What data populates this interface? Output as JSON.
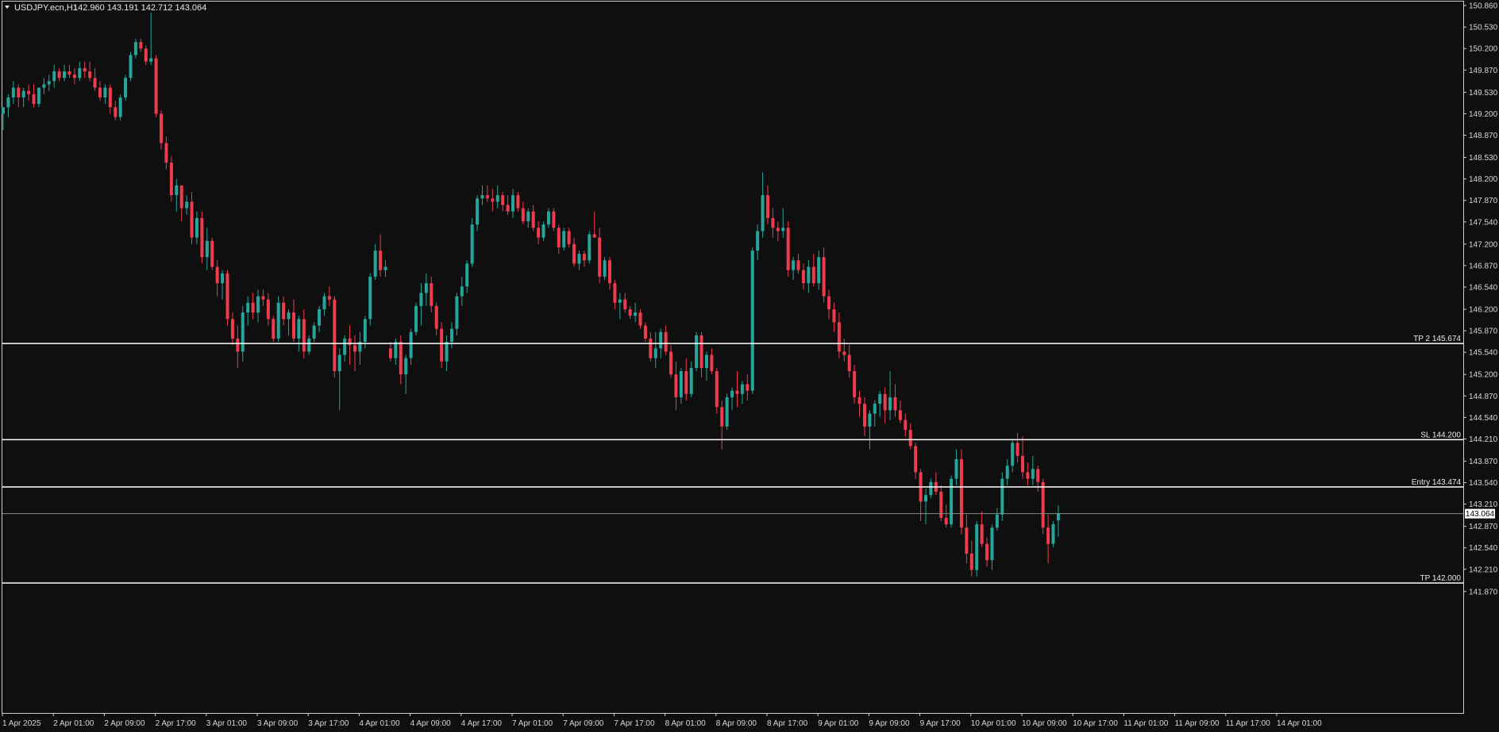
{
  "header": {
    "symbol": "USDJPY.ecn,H1",
    "ohlc": "142.960 143.191 142.712 143.064"
  },
  "colors": {
    "background": "#0f0f0f",
    "bull": "#26a69a",
    "bear": "#ef3b4e",
    "level_line": "#ffffff",
    "current_price_line": "#7f8c8d",
    "axis_text": "#d8d8d8"
  },
  "levels": [
    {
      "label": "TP 2 145.674",
      "price": 145.674
    },
    {
      "label": "SL 144.200",
      "price": 144.2
    },
    {
      "label": "Entry 143.474",
      "price": 143.474
    },
    {
      "label": "TP 142.000",
      "price": 142.0
    }
  ],
  "current_price": {
    "label": "143.064",
    "price": 143.064
  },
  "chart_data": {
    "type": "candlestick",
    "title": "USDJPY.ecn,H1",
    "ylim": [
      141.75,
      150.9
    ],
    "y_ticks": [
      "150.860",
      "150.530",
      "150.200",
      "149.870",
      "149.530",
      "149.200",
      "148.870",
      "148.530",
      "148.200",
      "147.870",
      "147.540",
      "147.200",
      "146.870",
      "146.540",
      "146.200",
      "145.870",
      "145.540",
      "145.200",
      "144.870",
      "144.540",
      "144.210",
      "143.870",
      "143.540",
      "143.210",
      "142.870",
      "142.540",
      "142.210",
      "141.870"
    ],
    "x_ticks": [
      "1 Apr 2025",
      "2 Apr 01:00",
      "2 Apr 09:00",
      "2 Apr 17:00",
      "3 Apr 01:00",
      "3 Apr 09:00",
      "3 Apr 17:00",
      "4 Apr 01:00",
      "4 Apr 09:00",
      "4 Apr 17:00",
      "7 Apr 01:00",
      "7 Apr 09:00",
      "7 Apr 17:00",
      "8 Apr 01:00",
      "8 Apr 09:00",
      "8 Apr 17:00",
      "9 Apr 01:00",
      "9 Apr 09:00",
      "9 Apr 17:00",
      "10 Apr 01:00",
      "10 Apr 09:00",
      "10 Apr 17:00",
      "11 Apr 01:00",
      "11 Apr 09:00",
      "11 Apr 17:00",
      "14 Apr 01:00"
    ],
    "candles_ohlc": [
      [
        149.2,
        149.3,
        148.95,
        149.3
      ],
      [
        149.3,
        149.5,
        149.15,
        149.45
      ],
      [
        149.45,
        149.7,
        149.35,
        149.6
      ],
      [
        149.6,
        149.65,
        149.3,
        149.45
      ],
      [
        149.45,
        149.6,
        149.3,
        149.55
      ],
      [
        149.55,
        149.65,
        149.4,
        149.5
      ],
      [
        149.5,
        149.65,
        149.3,
        149.35
      ],
      [
        149.35,
        149.6,
        149.3,
        149.6
      ],
      [
        149.6,
        149.75,
        149.5,
        149.65
      ],
      [
        149.65,
        149.8,
        149.55,
        149.7
      ],
      [
        149.7,
        149.95,
        149.6,
        149.85
      ],
      [
        149.85,
        149.9,
        149.7,
        149.75
      ],
      [
        149.75,
        149.95,
        149.7,
        149.85
      ],
      [
        149.85,
        149.95,
        149.75,
        149.8
      ],
      [
        149.8,
        149.9,
        149.65,
        149.75
      ],
      [
        149.75,
        150.0,
        149.7,
        149.9
      ],
      [
        149.9,
        150.0,
        149.75,
        149.85
      ],
      [
        149.85,
        150.0,
        149.7,
        149.75
      ],
      [
        149.75,
        149.9,
        149.55,
        149.6
      ],
      [
        149.6,
        149.7,
        149.4,
        149.45
      ],
      [
        149.45,
        149.65,
        149.35,
        149.6
      ],
      [
        149.6,
        149.65,
        149.2,
        149.3
      ],
      [
        149.3,
        149.4,
        149.1,
        149.15
      ],
      [
        149.15,
        149.5,
        149.1,
        149.45
      ],
      [
        149.45,
        149.8,
        149.4,
        149.75
      ],
      [
        149.75,
        150.15,
        149.7,
        150.1
      ],
      [
        150.1,
        150.35,
        150.05,
        150.3
      ],
      [
        150.3,
        150.35,
        150.15,
        150.2
      ],
      [
        150.2,
        150.25,
        149.95,
        150.0
      ],
      [
        150.0,
        150.75,
        149.95,
        150.05
      ],
      [
        150.05,
        150.1,
        149.15,
        149.2
      ],
      [
        149.2,
        149.25,
        148.65,
        148.75
      ],
      [
        148.75,
        148.85,
        148.35,
        148.45
      ],
      [
        148.45,
        148.55,
        147.85,
        147.95
      ],
      [
        147.95,
        148.2,
        147.7,
        148.1
      ],
      [
        148.1,
        148.1,
        147.55,
        147.75
      ],
      [
        147.75,
        147.95,
        147.65,
        147.85
      ],
      [
        147.85,
        148.0,
        147.2,
        147.3
      ],
      [
        147.3,
        147.7,
        147.2,
        147.6
      ],
      [
        147.6,
        147.7,
        146.9,
        147.0
      ],
      [
        147.0,
        147.45,
        146.8,
        147.25
      ],
      [
        147.25,
        147.3,
        146.8,
        146.85
      ],
      [
        146.85,
        146.95,
        146.4,
        146.6
      ],
      [
        146.6,
        146.8,
        146.35,
        146.75
      ],
      [
        146.75,
        146.8,
        145.95,
        146.05
      ],
      [
        146.05,
        146.15,
        145.65,
        145.75
      ],
      [
        145.75,
        145.95,
        145.3,
        145.55
      ],
      [
        145.55,
        146.25,
        145.4,
        146.15
      ],
      [
        146.15,
        146.4,
        145.95,
        146.3
      ],
      [
        146.3,
        146.45,
        146.05,
        146.15
      ],
      [
        146.15,
        146.5,
        146.0,
        146.4
      ],
      [
        146.4,
        146.5,
        146.25,
        146.35
      ],
      [
        146.35,
        146.45,
        145.95,
        146.05
      ],
      [
        146.05,
        146.1,
        145.7,
        145.75
      ],
      [
        145.75,
        146.4,
        145.7,
        146.3
      ],
      [
        146.3,
        146.4,
        145.95,
        146.05
      ],
      [
        146.05,
        146.2,
        145.8,
        146.15
      ],
      [
        146.15,
        146.35,
        145.7,
        145.75
      ],
      [
        145.75,
        146.1,
        145.55,
        146.05
      ],
      [
        146.05,
        146.2,
        145.45,
        145.55
      ],
      [
        145.55,
        145.8,
        145.5,
        145.75
      ],
      [
        145.75,
        146.0,
        145.7,
        145.95
      ],
      [
        145.95,
        146.25,
        145.85,
        146.2
      ],
      [
        146.2,
        146.45,
        146.1,
        146.4
      ],
      [
        146.4,
        146.55,
        146.25,
        146.35
      ],
      [
        146.35,
        146.4,
        145.15,
        145.25
      ],
      [
        145.25,
        145.6,
        144.65,
        145.5
      ],
      [
        145.5,
        145.8,
        145.4,
        145.75
      ],
      [
        145.75,
        145.95,
        145.35,
        145.65
      ],
      [
        145.65,
        145.8,
        145.25,
        145.55
      ],
      [
        145.55,
        145.85,
        145.35,
        145.7
      ],
      [
        145.7,
        146.1,
        145.6,
        146.05
      ],
      [
        146.05,
        146.75,
        145.95,
        146.7
      ],
      [
        146.7,
        147.2,
        146.65,
        147.1
      ],
      [
        147.1,
        147.35,
        146.7,
        146.8
      ],
      [
        146.8,
        146.95,
        146.7,
        146.85
      ],
      [
        145.6,
        145.7,
        145.4,
        145.45
      ],
      [
        145.45,
        145.75,
        145.35,
        145.7
      ],
      [
        145.7,
        145.8,
        145.05,
        145.2
      ],
      [
        145.2,
        145.5,
        144.9,
        145.45
      ],
      [
        145.45,
        145.9,
        145.35,
        145.85
      ],
      [
        145.85,
        146.3,
        145.8,
        146.25
      ],
      [
        146.25,
        146.6,
        145.95,
        146.45
      ],
      [
        146.45,
        146.75,
        146.25,
        146.6
      ],
      [
        146.6,
        146.7,
        146.15,
        146.25
      ],
      [
        146.25,
        146.3,
        145.8,
        145.9
      ],
      [
        145.9,
        146.0,
        145.3,
        145.4
      ],
      [
        145.4,
        145.8,
        145.25,
        145.7
      ],
      [
        145.7,
        146.0,
        145.6,
        145.9
      ],
      [
        145.9,
        146.45,
        145.8,
        146.4
      ],
      [
        146.4,
        146.7,
        146.25,
        146.55
      ],
      [
        146.55,
        146.95,
        146.45,
        146.9
      ],
      [
        146.9,
        147.6,
        146.85,
        147.5
      ],
      [
        147.5,
        147.95,
        147.4,
        147.9
      ],
      [
        147.9,
        148.1,
        147.8,
        147.95
      ],
      [
        147.95,
        148.1,
        147.85,
        147.9
      ],
      [
        147.9,
        148.05,
        147.7,
        147.85
      ],
      [
        147.85,
        148.1,
        147.75,
        147.95
      ],
      [
        147.95,
        148.0,
        147.7,
        147.8
      ],
      [
        147.8,
        147.95,
        147.65,
        147.7
      ],
      [
        147.7,
        148.05,
        147.6,
        147.95
      ],
      [
        147.95,
        148.0,
        147.7,
        147.75
      ],
      [
        147.75,
        147.85,
        147.5,
        147.55
      ],
      [
        147.55,
        147.75,
        147.45,
        147.7
      ],
      [
        147.7,
        147.8,
        147.4,
        147.45
      ],
      [
        147.45,
        147.55,
        147.2,
        147.3
      ],
      [
        147.3,
        147.55,
        147.25,
        147.5
      ],
      [
        147.5,
        147.75,
        147.45,
        147.7
      ],
      [
        147.7,
        147.75,
        147.4,
        147.45
      ],
      [
        147.45,
        147.5,
        147.05,
        147.15
      ],
      [
        147.15,
        147.45,
        147.1,
        147.4
      ],
      [
        147.4,
        147.45,
        147.15,
        147.2
      ],
      [
        147.2,
        147.3,
        146.85,
        146.9
      ],
      [
        146.9,
        147.1,
        146.8,
        147.05
      ],
      [
        147.05,
        147.1,
        146.85,
        146.95
      ],
      [
        146.95,
        147.4,
        146.9,
        147.35
      ],
      [
        147.35,
        147.7,
        147.3,
        147.3
      ],
      [
        147.3,
        147.45,
        146.6,
        146.7
      ],
      [
        146.7,
        147.0,
        146.65,
        146.95
      ],
      [
        146.95,
        147.0,
        146.5,
        146.6
      ],
      [
        146.6,
        146.65,
        146.2,
        146.3
      ],
      [
        146.3,
        146.45,
        146.05,
        146.35
      ],
      [
        146.35,
        146.45,
        146.15,
        146.2
      ],
      [
        146.2,
        146.25,
        146.05,
        146.1
      ],
      [
        146.1,
        146.3,
        146.0,
        146.15
      ],
      [
        146.15,
        146.2,
        145.9,
        145.95
      ],
      [
        145.95,
        146.0,
        145.7,
        145.75
      ],
      [
        145.75,
        145.85,
        145.4,
        145.45
      ],
      [
        145.45,
        145.85,
        145.3,
        145.6
      ],
      [
        145.6,
        145.9,
        145.45,
        145.85
      ],
      [
        145.85,
        145.95,
        145.5,
        145.55
      ],
      [
        145.55,
        145.65,
        145.15,
        145.2
      ],
      [
        145.2,
        145.4,
        144.65,
        144.85
      ],
      [
        144.85,
        145.3,
        144.75,
        145.25
      ],
      [
        145.25,
        145.45,
        144.8,
        144.9
      ],
      [
        144.9,
        145.4,
        144.85,
        145.3
      ],
      [
        145.3,
        145.85,
        145.25,
        145.8
      ],
      [
        145.8,
        145.85,
        145.15,
        145.3
      ],
      [
        145.3,
        145.55,
        145.1,
        145.5
      ],
      [
        145.5,
        145.6,
        145.2,
        145.25
      ],
      [
        145.25,
        145.3,
        144.6,
        144.7
      ],
      [
        144.7,
        144.8,
        144.05,
        144.4
      ],
      [
        144.4,
        144.9,
        144.35,
        144.85
      ],
      [
        144.85,
        145.0,
        144.65,
        144.95
      ],
      [
        144.95,
        145.25,
        144.7,
        144.9
      ],
      [
        144.9,
        145.1,
        144.75,
        145.05
      ],
      [
        145.05,
        145.2,
        144.8,
        144.95
      ],
      [
        144.95,
        147.15,
        144.9,
        147.1
      ],
      [
        147.1,
        147.5,
        146.95,
        147.4
      ],
      [
        147.4,
        148.3,
        147.3,
        147.95
      ],
      [
        147.95,
        148.1,
        147.5,
        147.6
      ],
      [
        147.6,
        147.75,
        147.3,
        147.45
      ],
      [
        147.45,
        147.55,
        147.25,
        147.4
      ],
      [
        147.4,
        147.75,
        147.3,
        147.45
      ],
      [
        147.45,
        147.55,
        146.7,
        146.8
      ],
      [
        146.8,
        147.0,
        146.65,
        146.95
      ],
      [
        146.95,
        147.05,
        146.75,
        146.8
      ],
      [
        146.8,
        146.9,
        146.5,
        146.6
      ],
      [
        146.6,
        146.95,
        146.45,
        146.85
      ],
      [
        146.85,
        147.05,
        146.55,
        146.6
      ],
      [
        146.6,
        147.1,
        146.5,
        147.0
      ],
      [
        147.0,
        147.15,
        146.3,
        146.4
      ],
      [
        146.4,
        146.5,
        146.05,
        146.2
      ],
      [
        146.2,
        146.3,
        145.85,
        146.0
      ],
      [
        146.0,
        146.15,
        145.45,
        145.55
      ],
      [
        145.55,
        145.75,
        145.4,
        145.5
      ],
      [
        145.5,
        145.65,
        145.15,
        145.25
      ],
      [
        145.25,
        145.35,
        144.75,
        144.85
      ],
      [
        144.85,
        144.95,
        144.55,
        144.75
      ],
      [
        144.75,
        144.85,
        144.25,
        144.4
      ],
      [
        144.4,
        144.65,
        144.05,
        144.6
      ],
      [
        144.6,
        144.8,
        144.4,
        144.75
      ],
      [
        144.75,
        144.95,
        144.55,
        144.9
      ],
      [
        144.9,
        145.0,
        144.45,
        144.65
      ],
      [
        144.65,
        145.25,
        144.5,
        144.85
      ],
      [
        144.85,
        145.05,
        144.55,
        144.65
      ],
      [
        144.65,
        144.8,
        144.45,
        144.5
      ],
      [
        144.5,
        144.6,
        144.25,
        144.35
      ],
      [
        144.35,
        144.45,
        144.05,
        144.1
      ],
      [
        144.1,
        144.15,
        143.6,
        143.7
      ],
      [
        143.7,
        143.75,
        142.95,
        143.25
      ],
      [
        143.25,
        143.45,
        142.9,
        143.35
      ],
      [
        143.35,
        143.6,
        143.3,
        143.55
      ],
      [
        143.55,
        143.7,
        143.35,
        143.4
      ],
      [
        143.4,
        143.5,
        142.95,
        143.0
      ],
      [
        143.0,
        143.2,
        142.85,
        142.9
      ],
      [
        142.9,
        143.65,
        142.85,
        143.6
      ],
      [
        143.6,
        144.05,
        143.5,
        143.9
      ],
      [
        143.9,
        144.05,
        142.75,
        142.85
      ],
      [
        142.85,
        143.05,
        142.3,
        142.45
      ],
      [
        142.45,
        142.65,
        142.1,
        142.2
      ],
      [
        142.2,
        142.95,
        142.1,
        142.9
      ],
      [
        142.9,
        143.1,
        142.55,
        142.6
      ],
      [
        142.6,
        142.7,
        142.25,
        142.35
      ],
      [
        142.35,
        142.9,
        142.2,
        142.85
      ],
      [
        142.85,
        143.15,
        142.8,
        143.05
      ],
      [
        143.05,
        143.7,
        142.95,
        143.6
      ],
      [
        143.6,
        143.9,
        143.5,
        143.8
      ],
      [
        143.8,
        144.2,
        143.7,
        144.15
      ],
      [
        144.15,
        144.3,
        143.85,
        143.95
      ],
      [
        143.95,
        144.25,
        143.6,
        143.7
      ],
      [
        143.7,
        143.85,
        143.5,
        143.6
      ],
      [
        143.6,
        143.95,
        143.5,
        143.75
      ],
      [
        143.75,
        143.8,
        143.4,
        143.55
      ],
      [
        143.55,
        143.6,
        142.75,
        142.85
      ],
      [
        142.85,
        143.05,
        142.3,
        142.6
      ],
      [
        142.6,
        142.95,
        142.55,
        142.9
      ],
      [
        142.96,
        143.19,
        142.71,
        143.06
      ]
    ]
  }
}
